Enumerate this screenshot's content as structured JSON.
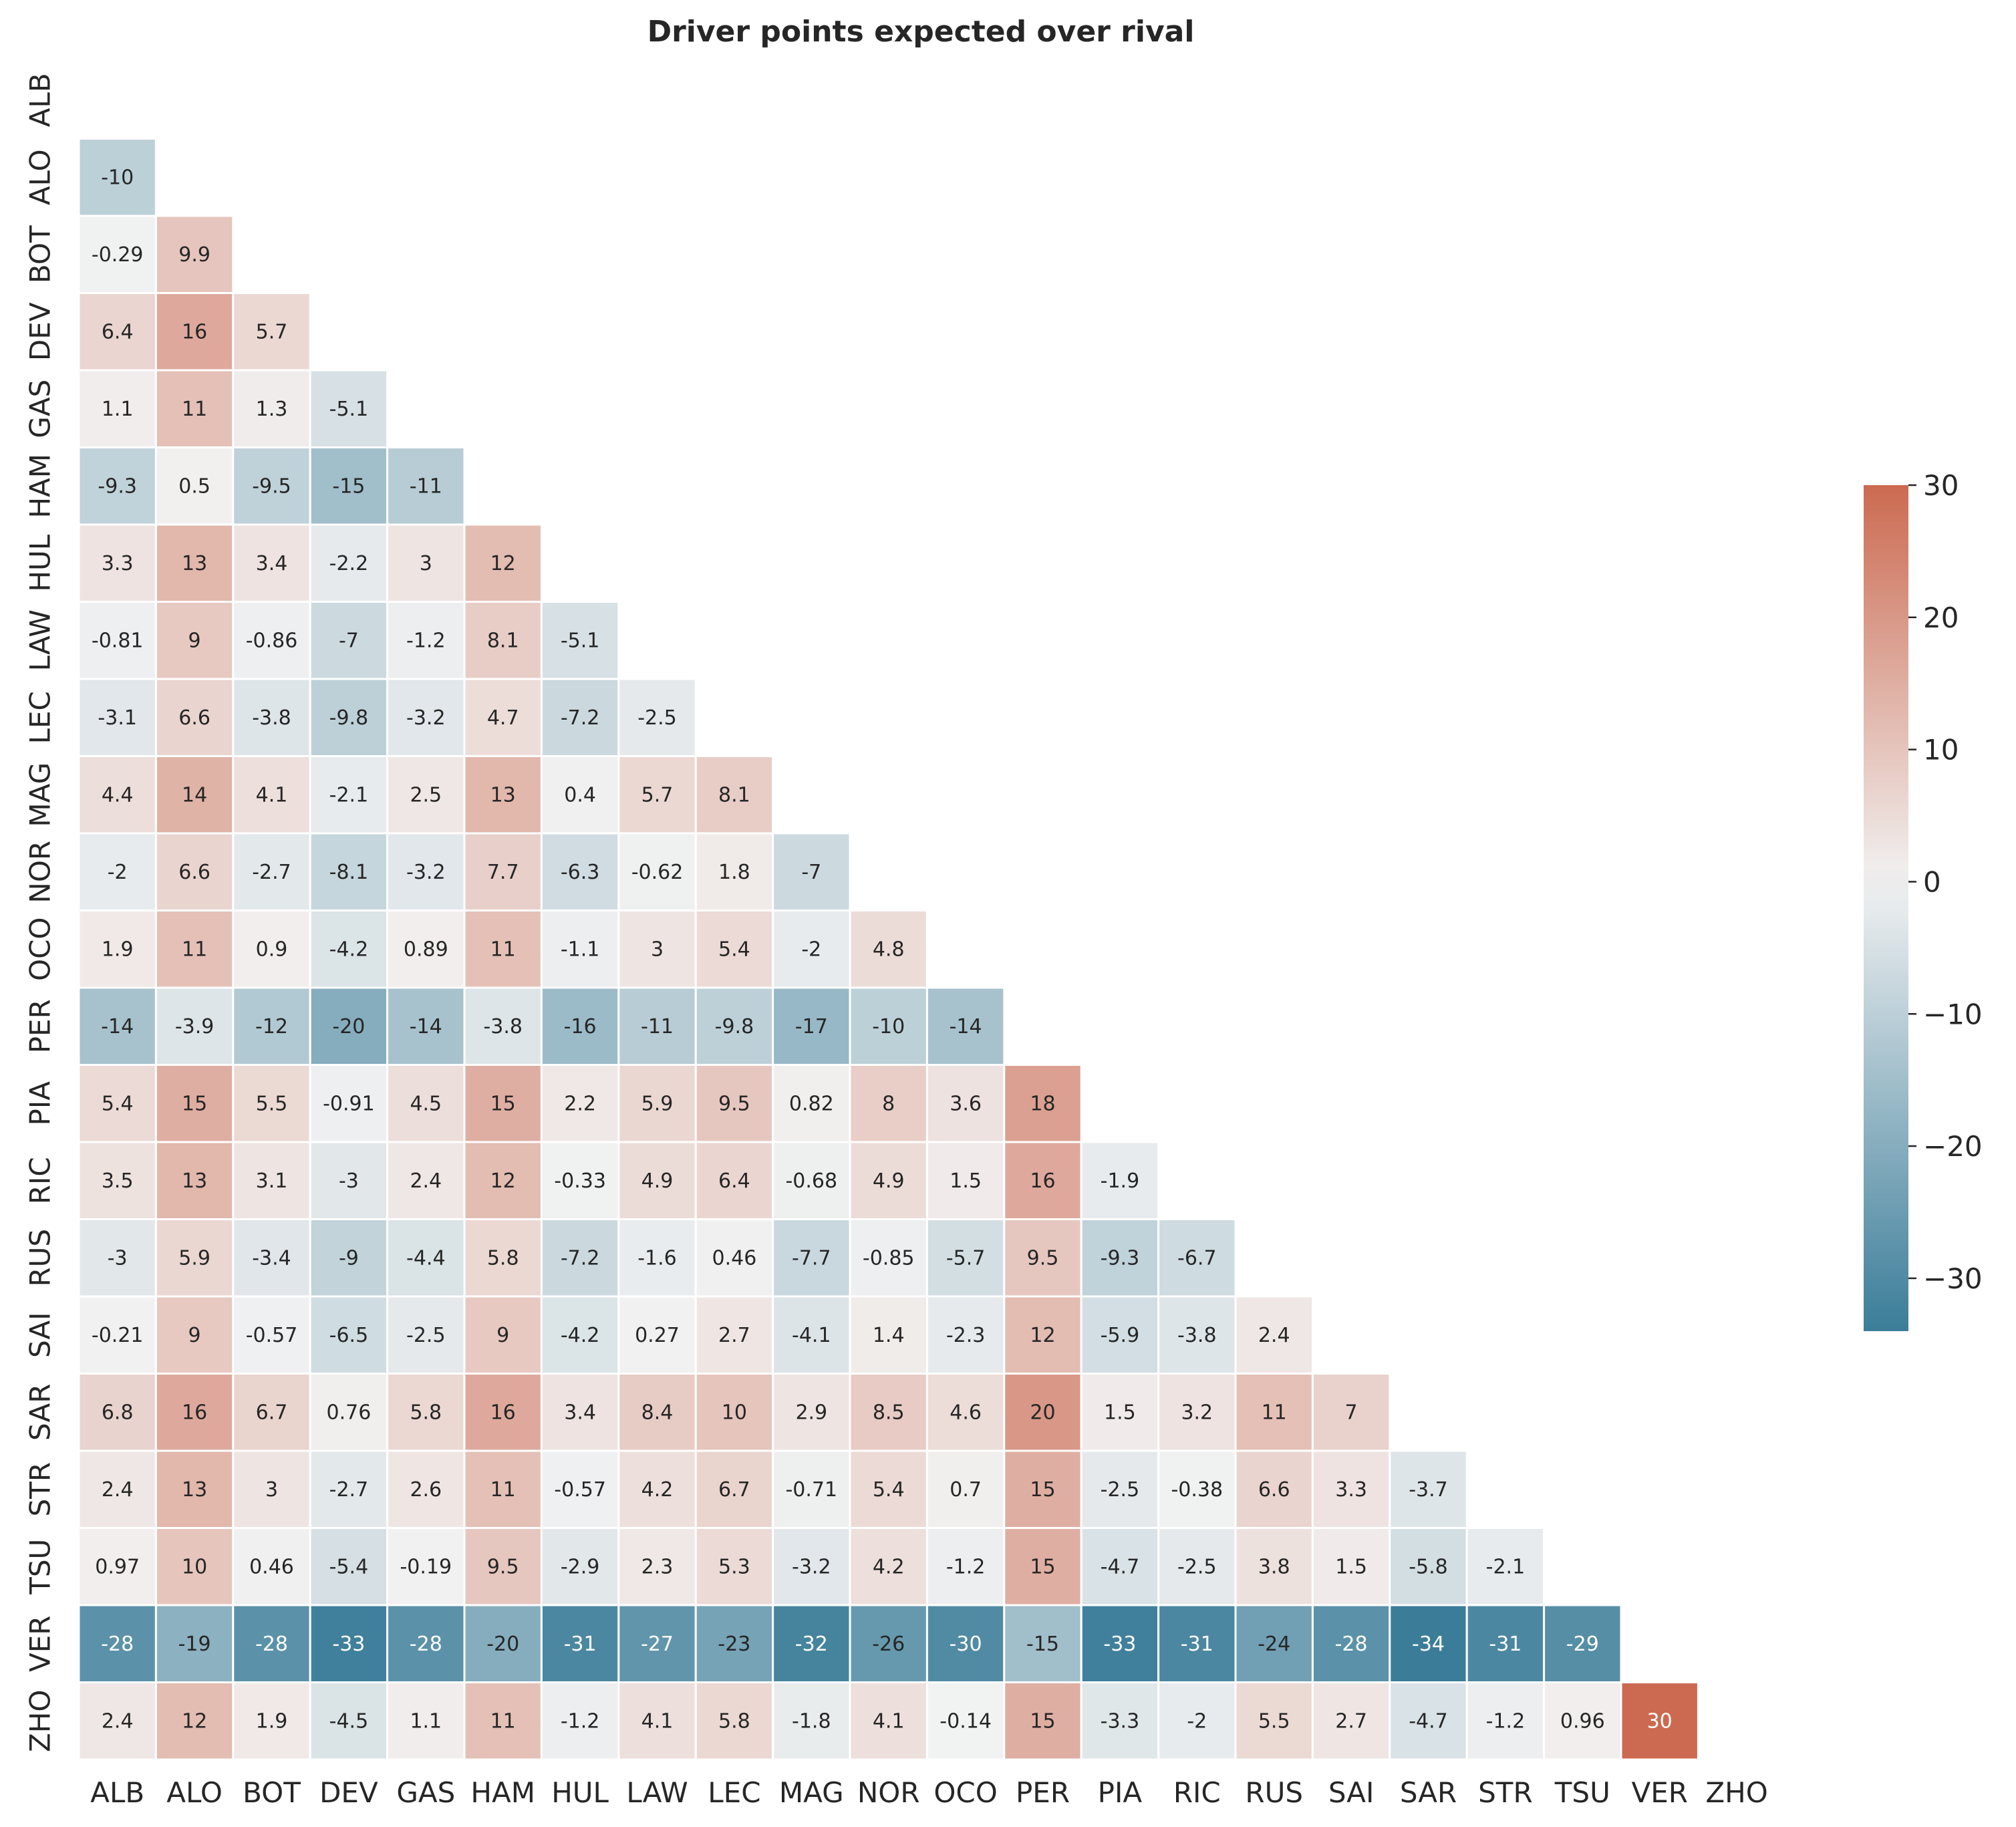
{
  "chart_data": {
    "type": "heatmap",
    "title": "Driver points expected over rival",
    "xlabel": "",
    "ylabel": "",
    "drivers": [
      "ALB",
      "ALO",
      "BOT",
      "DEV",
      "GAS",
      "HAM",
      "HUL",
      "LAW",
      "LEC",
      "MAG",
      "NOR",
      "OCO",
      "PER",
      "PIA",
      "RIC",
      "RUS",
      "SAI",
      "SAR",
      "STR",
      "TSU",
      "VER",
      "ZHO"
    ],
    "mask": "upper-triangle-and-diagonal",
    "rows": [
      [],
      [
        -10
      ],
      [
        -0.29,
        9.9
      ],
      [
        6.4,
        16,
        5.7
      ],
      [
        1.1,
        11,
        1.3,
        -5.1
      ],
      [
        -9.3,
        0.5,
        -9.5,
        -15,
        -11
      ],
      [
        3.3,
        13,
        3.4,
        -2.2,
        3,
        12
      ],
      [
        -0.81,
        9,
        -0.86,
        -7,
        -1.2,
        8.1,
        -5.1
      ],
      [
        -3.1,
        6.6,
        -3.8,
        -9.8,
        -3.2,
        4.7,
        -7.2,
        -2.5
      ],
      [
        4.4,
        14,
        4.1,
        -2.1,
        2.5,
        13,
        0.4,
        5.7,
        8.1
      ],
      [
        -2,
        6.6,
        -2.7,
        -8.1,
        -3.2,
        7.7,
        -6.3,
        -0.62,
        1.8,
        -7
      ],
      [
        1.9,
        11,
        0.9,
        -4.2,
        0.89,
        11,
        -1.1,
        3,
        5.4,
        -2,
        4.8
      ],
      [
        -14,
        -3.9,
        -12,
        -20,
        -14,
        -3.8,
        -16,
        -11,
        -9.8,
        -17,
        -10,
        -14
      ],
      [
        5.4,
        15,
        5.5,
        -0.91,
        4.5,
        15,
        2.2,
        5.9,
        9.5,
        0.82,
        8,
        3.6,
        18
      ],
      [
        3.5,
        13,
        3.1,
        -3,
        2.4,
        12,
        -0.33,
        4.9,
        6.4,
        -0.68,
        4.9,
        1.5,
        16,
        -1.9
      ],
      [
        -3,
        5.9,
        -3.4,
        -9,
        -4.4,
        5.8,
        -7.2,
        -1.6,
        0.46,
        -7.7,
        -0.85,
        -5.7,
        9.5,
        -9.3,
        -6.7
      ],
      [
        -0.21,
        9,
        -0.57,
        -6.5,
        -2.5,
        9,
        -4.2,
        0.27,
        2.7,
        -4.1,
        1.4,
        -2.3,
        12,
        -5.9,
        -3.8,
        2.4
      ],
      [
        6.8,
        16,
        6.7,
        0.76,
        5.8,
        16,
        3.4,
        8.4,
        10,
        2.9,
        8.5,
        4.6,
        20,
        1.5,
        3.2,
        11,
        7
      ],
      [
        2.4,
        13,
        3,
        -2.7,
        2.6,
        11,
        -0.57,
        4.2,
        6.7,
        -0.71,
        5.4,
        0.7,
        15,
        -2.5,
        -0.38,
        6.6,
        3.3,
        -3.7
      ],
      [
        0.97,
        10,
        0.46,
        -5.4,
        -0.19,
        9.5,
        -2.9,
        2.3,
        5.3,
        -3.2,
        4.2,
        -1.2,
        15,
        -4.7,
        -2.5,
        3.8,
        1.5,
        -5.8,
        -2.1
      ],
      [
        -28,
        -19,
        -28,
        -33,
        -28,
        -20,
        -31,
        -27,
        -23,
        -32,
        -26,
        -30,
        -15,
        -33,
        -31,
        -24,
        -28,
        -34,
        -31,
        -29
      ],
      [
        2.4,
        12,
        1.9,
        -4.5,
        1.1,
        11,
        -1.2,
        4.1,
        5.8,
        -1.8,
        4.1,
        -0.14,
        15,
        -3.3,
        -2,
        5.5,
        2.7,
        -4.7,
        -1.2,
        0.96,
        30
      ]
    ],
    "colorbar": {
      "vmin": -34,
      "vmax": 30,
      "ticks": [
        30,
        20,
        10,
        0,
        -10,
        -20,
        -30
      ],
      "tick_labels": [
        "30",
        "20",
        "10",
        "0",
        "−10",
        "−20",
        "−30"
      ]
    },
    "colors": {
      "negative_end": "#3b7d99",
      "center": "#f2f2f2",
      "positive_end": "#cc6a51",
      "light_text": "#ffffff",
      "dark_text": "#262626",
      "cell_border": "#ffffff"
    }
  }
}
